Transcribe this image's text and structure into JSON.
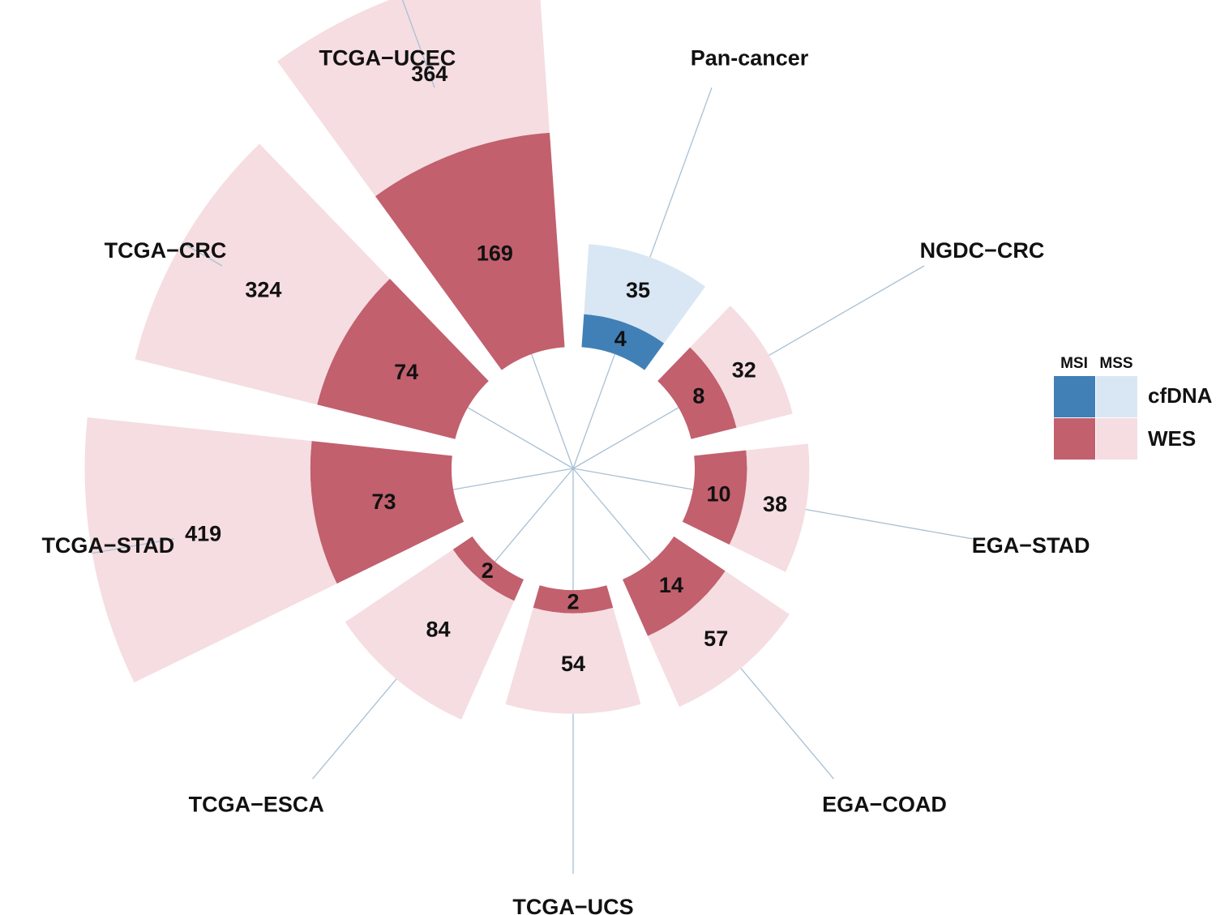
{
  "chart_data": {
    "type": "radial-stacked-bar",
    "title": "",
    "categories": [
      "Pan-cancer",
      "NGDC−CRC",
      "EGA−STAD",
      "EGA−COAD",
      "TCGA−UCS",
      "TCGA−ESCA",
      "TCGA−STAD",
      "TCGA−CRC",
      "TCGA−UCEC"
    ],
    "groups": [
      "cfDNA",
      "WES",
      "WES",
      "WES",
      "WES",
      "WES",
      "WES",
      "WES",
      "WES"
    ],
    "series": [
      {
        "name": "MSI",
        "values": [
          4,
          8,
          10,
          14,
          2,
          2,
          73,
          74,
          169
        ]
      },
      {
        "name": "MSS",
        "values": [
          35,
          32,
          38,
          57,
          54,
          84,
          419,
          324,
          364
        ]
      }
    ],
    "colors": {
      "cfDNA": {
        "MSI": "#4180b6",
        "MSS": "#d9e7f4"
      },
      "WES": {
        "MSI": "#c2606e",
        "MSS": "#f5dde1"
      },
      "spoke": "#a8c0d4"
    },
    "legend": {
      "col_headers": [
        "MSI",
        "MSS"
      ],
      "rows": [
        "cfDNA",
        "WES"
      ],
      "position": "right"
    }
  }
}
